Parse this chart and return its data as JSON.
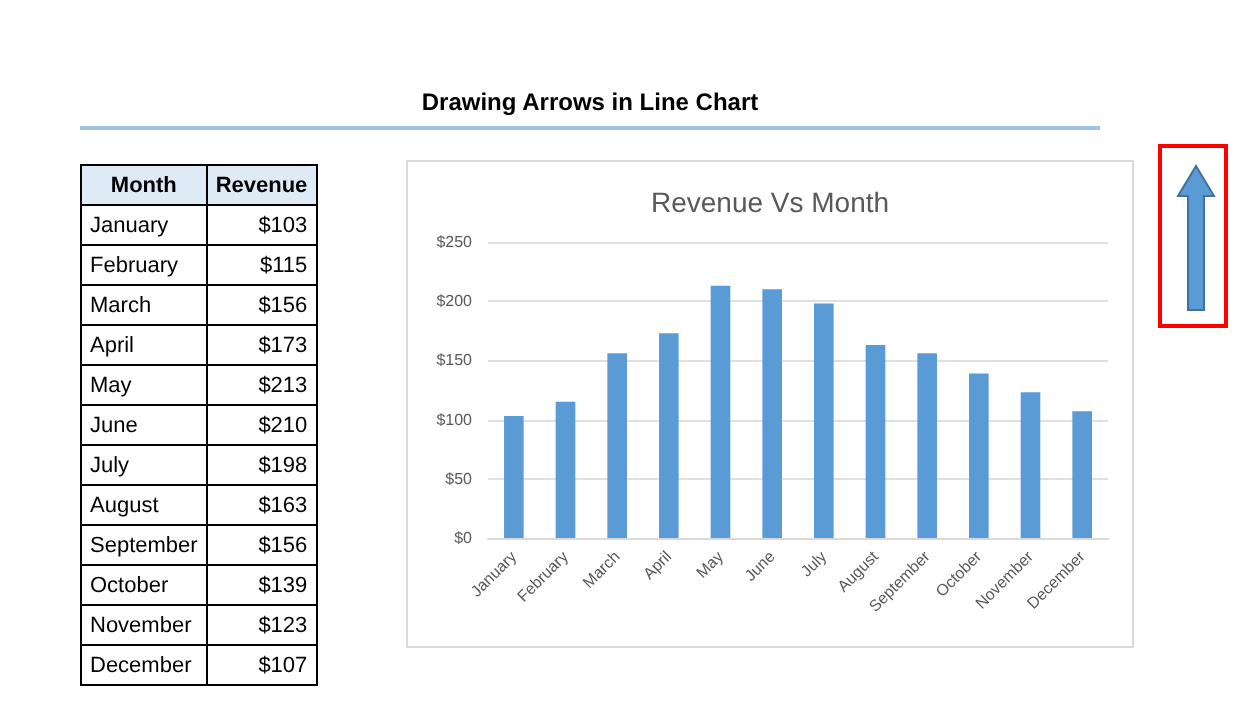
{
  "chart_data": [
    {
      "type": "other",
      "title": "Drawing Arrows in Line Chart",
      "annotations": [
        "Month",
        "Revenue",
        "January",
        "$103",
        "February",
        "$115",
        "March",
        "$156",
        "April",
        "$173",
        "May",
        "$213",
        "June",
        "$210",
        "July",
        "$198",
        "August",
        "$163",
        "September",
        "$156",
        "October",
        "$139",
        "November",
        "$123",
        "December",
        "$107"
      ]
    },
    {
      "type": "bar",
      "title": "Revenue Vs Month",
      "categories": [
        "January",
        "February",
        "March",
        "April",
        "May",
        "June",
        "July",
        "August",
        "September",
        "October",
        "November",
        "December"
      ],
      "values": [
        103,
        115,
        156,
        173,
        213,
        210,
        198,
        163,
        156,
        139,
        123,
        107
      ],
      "color": "#5b9bd5",
      "ylim": [
        0,
        250
      ],
      "yticks": [
        {
          "value": 0,
          "label": "$0"
        },
        {
          "value": 50,
          "label": "$50"
        },
        {
          "value": 100,
          "label": "$100"
        },
        {
          "value": 150,
          "label": "$150"
        },
        {
          "value": 200,
          "label": "$200"
        },
        {
          "value": 250,
          "label": "$250"
        }
      ],
      "grid": "y"
    }
  ]
}
